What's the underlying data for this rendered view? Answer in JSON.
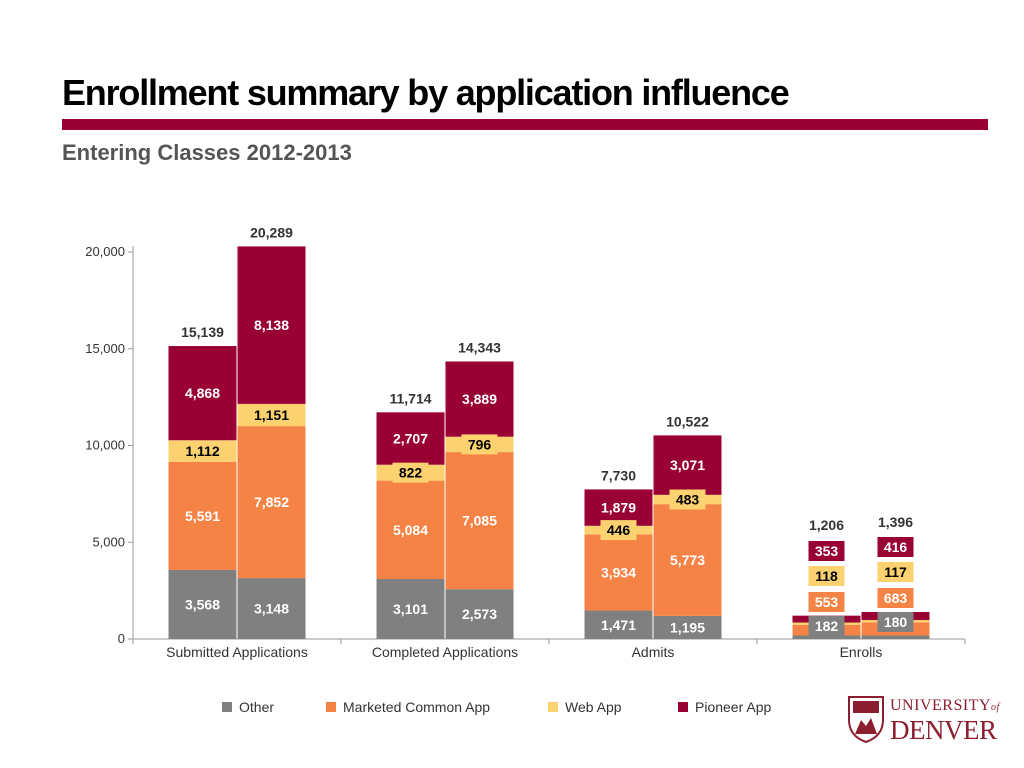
{
  "page": {
    "title": "Enrollment summary by application influence",
    "subtitle": "Entering Classes 2012-2013"
  },
  "logo": {
    "name": "UNIVERSITY of DENVER",
    "line1": "UNIVERSITY",
    "line1_of": "of",
    "line2": "DENVER",
    "emblem": "university-crest-icon",
    "color": "#8b1e2f"
  },
  "colors": {
    "accent": "#990033",
    "Other": "#808080",
    "Marketed Common App": "#f58345",
    "Web App": "#fcd170",
    "Pioneer App": "#990033"
  },
  "chart_data": {
    "type": "bar",
    "stacked": true,
    "title": "",
    "xlabel": "",
    "ylabel": "",
    "ylim": [
      0,
      20000
    ],
    "yticks": [
      0,
      5000,
      10000,
      15000,
      20000
    ],
    "ytick_labels": [
      "0",
      "5,000",
      "10,000",
      "15,000",
      "20,000"
    ],
    "grid": false,
    "legend_position": "bottom",
    "categories": [
      "Submitted Applications",
      "Completed Applications",
      "Admits",
      "Enrolls"
    ],
    "bars_per_category": [
      "2012",
      "2013"
    ],
    "series": [
      {
        "name": "Other",
        "values": [
          [
            3568,
            3148
          ],
          [
            3101,
            2573
          ],
          [
            1471,
            1195
          ],
          [
            182,
            180
          ]
        ],
        "labels": [
          [
            "3,568",
            "3,148"
          ],
          [
            "3,101",
            "2,573"
          ],
          [
            "1,471",
            "1,195"
          ],
          [
            "182",
            "180"
          ]
        ]
      },
      {
        "name": "Marketed Common App",
        "values": [
          [
            5591,
            7852
          ],
          [
            5084,
            7085
          ],
          [
            3934,
            5773
          ],
          [
            553,
            683
          ]
        ],
        "labels": [
          [
            "5,591",
            "7,852"
          ],
          [
            "5,084",
            "7,085"
          ],
          [
            "3,934",
            "5,773"
          ],
          [
            "553",
            "683"
          ]
        ]
      },
      {
        "name": "Web App",
        "values": [
          [
            1112,
            1151
          ],
          [
            822,
            796
          ],
          [
            446,
            483
          ],
          [
            118,
            117
          ]
        ],
        "labels": [
          [
            "1,112",
            "1,151"
          ],
          [
            "822",
            "796"
          ],
          [
            "446",
            "483"
          ],
          [
            "118",
            "117"
          ]
        ]
      },
      {
        "name": "Pioneer App",
        "values": [
          [
            4868,
            8138
          ],
          [
            2707,
            3889
          ],
          [
            1879,
            3071
          ],
          [
            353,
            416
          ]
        ],
        "labels": [
          [
            "4,868",
            "8,138"
          ],
          [
            "2,707",
            "3,889"
          ],
          [
            "1,879",
            "3,071"
          ],
          [
            "353",
            "416"
          ]
        ]
      }
    ],
    "totals": [
      [
        15139,
        20289
      ],
      [
        11714,
        14343
      ],
      [
        7730,
        10522
      ],
      [
        1206,
        1396
      ]
    ],
    "total_labels": [
      [
        "15,139",
        "20,289"
      ],
      [
        "11,714",
        "14,343"
      ],
      [
        "7,730",
        "10,522"
      ],
      [
        "1,206",
        "1,396"
      ]
    ]
  }
}
